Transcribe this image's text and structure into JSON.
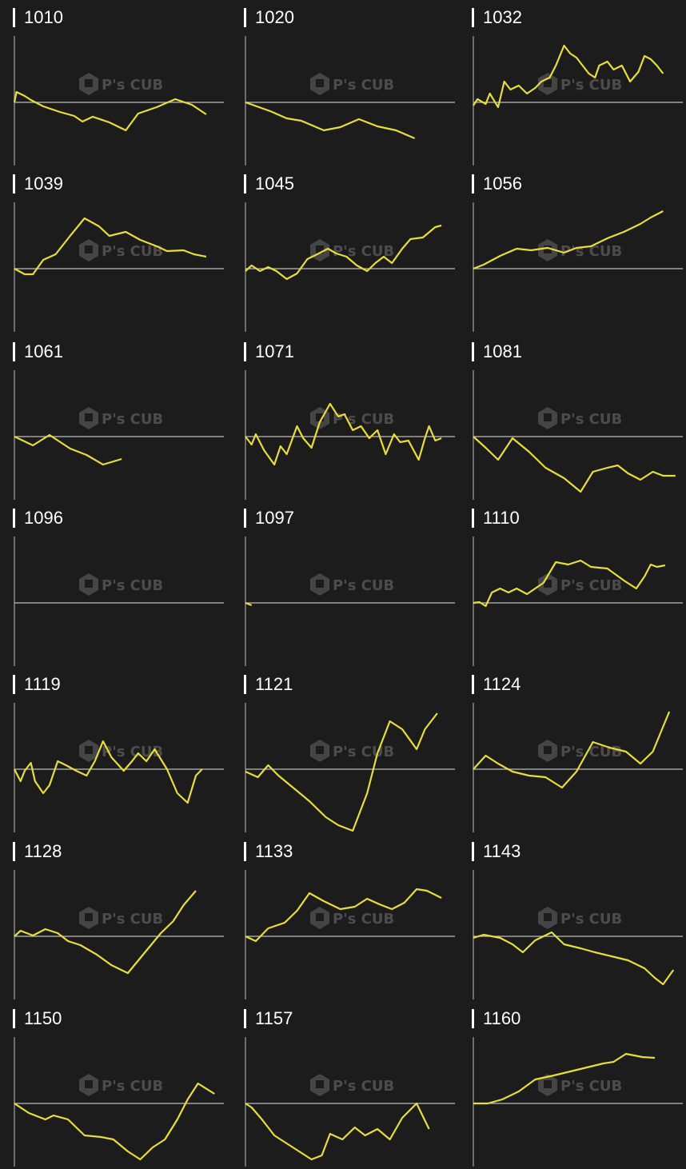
{
  "watermark": "P's CUBE",
  "colors": {
    "background": "#1c1c1c",
    "line": "#e8dd3a",
    "axis": "#bdbdbd",
    "title": "#ffffff"
  },
  "chart_data": [
    {
      "type": "line",
      "title": "1010",
      "xlim": [
        0,
        100
      ],
      "ylim": [
        -80,
        80
      ],
      "x": [
        0,
        1,
        5,
        8,
        14,
        22,
        29,
        33,
        38,
        46,
        54,
        60,
        69,
        78,
        86,
        93
      ],
      "y": [
        0,
        13,
        8,
        3,
        -5,
        -12,
        -17,
        -24,
        -18,
        -25,
        -35,
        -14,
        -6,
        4,
        -3,
        -15
      ]
    },
    {
      "type": "line",
      "title": "1020",
      "xlim": [
        0,
        100
      ],
      "ylim": [
        -80,
        80
      ],
      "x": [
        0,
        12,
        20,
        27,
        38,
        46,
        55,
        64,
        73,
        82
      ],
      "y": [
        0,
        -11,
        -20,
        -23,
        -35,
        -31,
        -21,
        -30,
        -35,
        -45
      ]
    },
    {
      "type": "line",
      "title": "1032",
      "xlim": [
        0,
        100
      ],
      "ylim": [
        -80,
        80
      ],
      "x": [
        0,
        2,
        6,
        8,
        12,
        15,
        18,
        22,
        26,
        30,
        33,
        37,
        40,
        44,
        47,
        50,
        53,
        56,
        59,
        61,
        65,
        68,
        72,
        76,
        80,
        83,
        86,
        89,
        92
      ],
      "y": [
        -4,
        4,
        -2,
        11,
        -6,
        26,
        16,
        21,
        11,
        18,
        26,
        31,
        46,
        71,
        61,
        56,
        46,
        36,
        31,
        46,
        51,
        41,
        46,
        26,
        38,
        58,
        54,
        46,
        36
      ]
    },
    {
      "type": "line",
      "title": "1039",
      "xlim": [
        0,
        100
      ],
      "ylim": [
        -80,
        80
      ],
      "x": [
        0,
        5,
        9,
        14,
        20,
        27,
        34,
        41,
        46,
        54,
        61,
        69,
        74,
        82,
        87,
        93
      ],
      "y": [
        0,
        -7,
        -7,
        11,
        18,
        41,
        63,
        53,
        41,
        46,
        36,
        28,
        22,
        23,
        18,
        15
      ]
    },
    {
      "type": "line",
      "title": "1045",
      "xlim": [
        0,
        100
      ],
      "ylim": [
        -80,
        80
      ],
      "x": [
        0,
        3,
        7,
        11,
        15,
        20,
        25,
        30,
        34,
        40,
        44,
        49,
        54,
        59,
        63,
        67,
        71,
        76,
        80,
        86,
        92,
        95
      ],
      "y": [
        -3,
        4,
        -3,
        2,
        -3,
        -13,
        -6,
        12,
        17,
        25,
        19,
        15,
        4,
        -3,
        7,
        15,
        7,
        25,
        37,
        39,
        52,
        54
      ]
    },
    {
      "type": "line",
      "title": "1056",
      "xlim": [
        0,
        100
      ],
      "ylim": [
        -80,
        80
      ],
      "x": [
        0,
        5,
        13,
        21,
        28,
        36,
        44,
        50,
        57,
        65,
        73,
        81,
        86,
        92
      ],
      "y": [
        0,
        5,
        16,
        25,
        23,
        26,
        20,
        26,
        28,
        38,
        46,
        56,
        64,
        72
      ]
    },
    {
      "type": "line",
      "title": "1061",
      "xlim": [
        0,
        100
      ],
      "ylim": [
        -80,
        80
      ],
      "x": [
        0,
        9,
        17,
        27,
        35,
        43,
        52
      ],
      "y": [
        0,
        -11,
        2,
        -15,
        -23,
        -35,
        -28
      ]
    },
    {
      "type": "line",
      "title": "1071",
      "xlim": [
        0,
        100
      ],
      "ylim": [
        -80,
        80
      ],
      "x": [
        0,
        3,
        5,
        9,
        14,
        17,
        20,
        25,
        28,
        32,
        36,
        41,
        45,
        48,
        52,
        56,
        60,
        64,
        68,
        72,
        75,
        79,
        84,
        87,
        89,
        92,
        95
      ],
      "y": [
        0,
        -10,
        3,
        -17,
        -35,
        -12,
        -22,
        13,
        -2,
        -14,
        18,
        41,
        25,
        28,
        8,
        13,
        -2,
        8,
        -22,
        3,
        -7,
        -5,
        -29,
        -2,
        13,
        -5,
        -2
      ]
    },
    {
      "type": "line",
      "title": "1081",
      "xlim": [
        0,
        100
      ],
      "ylim": [
        -80,
        80
      ],
      "x": [
        0,
        6,
        12,
        19,
        27,
        35,
        44,
        52,
        58,
        65,
        70,
        75,
        81,
        87,
        92,
        98
      ],
      "y": [
        0,
        -14,
        -29,
        -2,
        -19,
        -39,
        -52,
        -69,
        -44,
        -39,
        -36,
        -46,
        -54,
        -44,
        -49,
        -49
      ]
    },
    {
      "type": "line",
      "title": "1096",
      "xlim": [
        0,
        100
      ],
      "ylim": [
        -80,
        80
      ],
      "x": [],
      "y": []
    },
    {
      "type": "line",
      "title": "1097",
      "xlim": [
        0,
        100
      ],
      "ylim": [
        -80,
        80
      ],
      "x": [
        0,
        3
      ],
      "y": [
        0,
        -3
      ]
    },
    {
      "type": "line",
      "title": "1110",
      "xlim": [
        0,
        100
      ],
      "ylim": [
        -80,
        80
      ],
      "x": [
        0,
        3,
        6,
        9,
        13,
        17,
        21,
        26,
        34,
        40,
        46,
        52,
        57,
        65,
        73,
        79,
        83,
        86,
        89,
        93
      ],
      "y": [
        0,
        1,
        -4,
        13,
        18,
        13,
        18,
        11,
        25,
        51,
        48,
        53,
        45,
        43,
        28,
        18,
        33,
        48,
        45,
        47
      ]
    },
    {
      "type": "line",
      "title": "1119",
      "xlim": [
        0,
        100
      ],
      "ylim": [
        -80,
        80
      ],
      "x": [
        0,
        3,
        5,
        8,
        10,
        14,
        17,
        21,
        25,
        30,
        35,
        39,
        43,
        47,
        53,
        57,
        60,
        64,
        68,
        74,
        79,
        84,
        88,
        91
      ],
      "y": [
        0,
        -15,
        -2,
        8,
        -15,
        -30,
        -20,
        10,
        5,
        -2,
        -8,
        10,
        35,
        15,
        -2,
        10,
        20,
        10,
        25,
        0,
        -30,
        -42,
        -8,
        0
      ]
    },
    {
      "type": "line",
      "title": "1121",
      "xlim": [
        0,
        100
      ],
      "ylim": [
        -80,
        80
      ],
      "x": [
        0,
        6,
        11,
        16,
        24,
        31,
        39,
        45,
        52,
        59,
        64,
        70,
        76,
        83,
        87,
        93
      ],
      "y": [
        -3,
        -10,
        5,
        -8,
        -25,
        -40,
        -60,
        -70,
        -77,
        -30,
        20,
        60,
        50,
        25,
        50,
        70
      ]
    },
    {
      "type": "line",
      "title": "1124",
      "xlim": [
        0,
        100
      ],
      "ylim": [
        -80,
        80
      ],
      "x": [
        0,
        6,
        12,
        19,
        27,
        35,
        43,
        50,
        58,
        66,
        74,
        81,
        87,
        95
      ],
      "y": [
        0,
        17,
        7,
        -3,
        -8,
        -10,
        -23,
        -3,
        34,
        27,
        22,
        7,
        22,
        72
      ]
    },
    {
      "type": "line",
      "title": "1128",
      "xlim": [
        0,
        100
      ],
      "ylim": [
        -80,
        80
      ],
      "x": [
        0,
        3,
        9,
        15,
        21,
        26,
        32,
        40,
        47,
        55,
        63,
        71,
        77,
        82,
        88
      ],
      "y": [
        0,
        7,
        1,
        9,
        4,
        -6,
        -11,
        -23,
        -36,
        -46,
        -21,
        4,
        19,
        39,
        57
      ]
    },
    {
      "type": "line",
      "title": "1133",
      "xlim": [
        0,
        100
      ],
      "ylim": [
        -80,
        80
      ],
      "x": [
        0,
        5,
        11,
        19,
        25,
        31,
        38,
        46,
        53,
        59,
        65,
        71,
        77,
        83,
        88,
        95
      ],
      "y": [
        0,
        -6,
        10,
        17,
        32,
        54,
        44,
        34,
        37,
        47,
        40,
        34,
        42,
        59,
        57,
        48
      ]
    },
    {
      "type": "line",
      "title": "1143",
      "xlim": [
        0,
        100
      ],
      "ylim": [
        -80,
        80
      ],
      "x": [
        0,
        5,
        13,
        19,
        24,
        30,
        38,
        44,
        52,
        59,
        67,
        75,
        83,
        88,
        92,
        97
      ],
      "y": [
        -2,
        2,
        -2,
        -10,
        -20,
        -5,
        5,
        -10,
        -15,
        -20,
        -25,
        -30,
        -40,
        -52,
        -60,
        -42
      ]
    },
    {
      "type": "line",
      "title": "1150",
      "xlim": [
        0,
        100
      ],
      "ylim": [
        -80,
        80
      ],
      "x": [
        0,
        7,
        15,
        19,
        26,
        34,
        42,
        48,
        55,
        61,
        67,
        73,
        79,
        84,
        89,
        97
      ],
      "y": [
        0,
        -12,
        -20,
        -15,
        -20,
        -40,
        -42,
        -45,
        -60,
        -70,
        -55,
        -45,
        -20,
        5,
        25,
        12
      ]
    },
    {
      "type": "line",
      "title": "1157",
      "xlim": [
        0,
        100
      ],
      "ylim": [
        -80,
        80
      ],
      "x": [
        0,
        3,
        8,
        14,
        20,
        26,
        32,
        37,
        41,
        47,
        53,
        58,
        64,
        70,
        76,
        83,
        89
      ],
      "y": [
        0,
        -5,
        -20,
        -40,
        -50,
        -60,
        -70,
        -65,
        -38,
        -45,
        -30,
        -40,
        -32,
        -45,
        -18,
        0,
        -32
      ]
    },
    {
      "type": "line",
      "title": "1160",
      "xlim": [
        0,
        100
      ],
      "ylim": [
        -80,
        80
      ],
      "x": [
        0,
        7,
        14,
        22,
        30,
        39,
        47,
        55,
        63,
        68,
        74,
        82,
        88
      ],
      "y": [
        0,
        0,
        5,
        15,
        30,
        35,
        40,
        45,
        50,
        52,
        62,
        58,
        57
      ]
    }
  ]
}
